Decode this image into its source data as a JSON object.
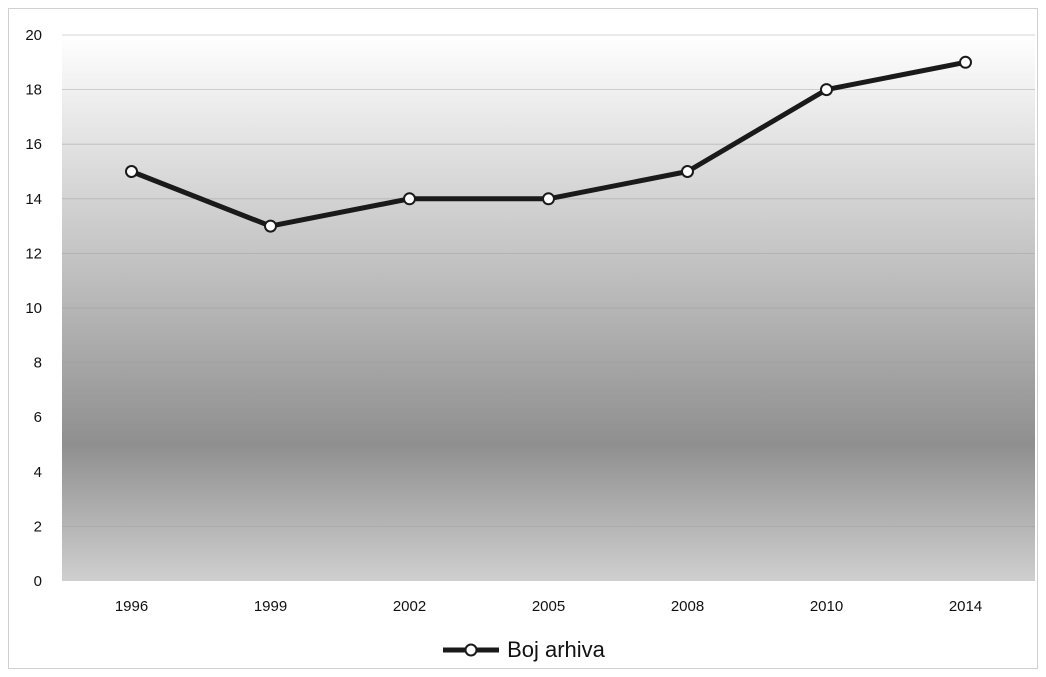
{
  "chart_data": {
    "type": "line",
    "title": "",
    "xlabel": "",
    "ylabel": "",
    "categories": [
      "1996",
      "1999",
      "2002",
      "2005",
      "2008",
      "2010",
      "2014"
    ],
    "series": [
      {
        "name": "Boj arhiva",
        "values": [
          15,
          13,
          14,
          14,
          15,
          18,
          19
        ],
        "color": "#1a1a1a"
      }
    ],
    "ylim": [
      0,
      20
    ],
    "yticks": [
      0,
      2,
      4,
      6,
      8,
      10,
      12,
      14,
      16,
      18,
      20
    ],
    "grid": true,
    "legend": "bottom-center",
    "colors": {
      "line": "#1a1a1a",
      "marker_fill": "#ffffff",
      "plot_bg_light": "#ffffff",
      "plot_bg_dark": "#8f8f8f"
    }
  }
}
